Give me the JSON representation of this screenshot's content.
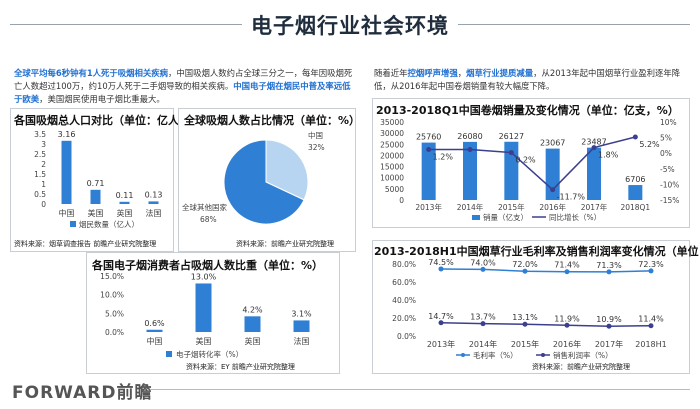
{
  "page": {
    "title": "电子烟行业社会环境",
    "footer_brand": "FORWARD前瞻"
  },
  "left_text": {
    "seg1": "全球平均每6秒钟有1人死于吸烟相关疾病",
    "seg2": "，中国吸烟人数约占全球三分之一，每年因吸烟死亡人数超过100万，约10万人死于二手烟导致的相关疾病。",
    "seg3": "中国电子烟在烟民中普及率远低于欧美",
    "seg4": "，美国烟民使用电子烟比重最大。"
  },
  "right_text": {
    "seg1": "随着近年",
    "seg2": "控烟呼声增强",
    "seg3": "，",
    "seg4": "烟草行业提质减量",
    "seg5": "，从2013年起中国烟草行业盈利逐年降低，从2016年起中国卷烟销量有较大幅度下降。"
  },
  "chart_data": [
    {
      "id": "smokers",
      "type": "bar",
      "title": "各国吸烟总人口对比（单位：亿人）",
      "categories": [
        "中国",
        "美国",
        "英国",
        "法国"
      ],
      "series": [
        {
          "name": "烟民数量（亿人）",
          "values": [
            3.16,
            0.71,
            0.11,
            0.13
          ]
        }
      ],
      "value_labels": [
        "3.16",
        "0.71",
        "0.11",
        "0.13"
      ],
      "ylim": [
        0,
        3.5
      ],
      "yticks": [
        "0",
        "0.5",
        "1",
        "1.5",
        "2",
        "2.5",
        "3",
        "3.5"
      ],
      "color": "#2f7fd4",
      "source": "资料来源：烟草调查报告 前瞻产业研究院整理"
    },
    {
      "id": "pie",
      "type": "pie",
      "title": "全球吸烟人数占比情况（单位：%）",
      "labels": [
        "中国",
        "全球其他国家"
      ],
      "values": [
        32,
        68
      ],
      "value_labels": [
        "32%",
        "68%"
      ],
      "colors": [
        "#b7d4f0",
        "#2f7fd4"
      ],
      "source": "资料来源：前瞻产业研究院整理"
    },
    {
      "id": "ecig",
      "type": "bar",
      "title": "各国电子烟消费者占吸烟人数比重（单位：%）",
      "categories": [
        "中国",
        "美国",
        "英国",
        "法国"
      ],
      "series": [
        {
          "name": "电子烟转化率（%）",
          "values": [
            0.6,
            13.0,
            4.2,
            3.1
          ]
        }
      ],
      "value_labels": [
        "0.6%",
        "13.0%",
        "4.2%",
        "3.1%"
      ],
      "ylim": [
        0,
        15
      ],
      "yticks": [
        "0.0%",
        "5.0%",
        "10.0%",
        "15.0%"
      ],
      "color": "#2f7fd4",
      "source": "资料来源：EY 前瞻产业研究院整理"
    },
    {
      "id": "sales",
      "type": "bar",
      "title": "2013-2018Q1中国卷烟销量及变化情况（单位：亿支，%）",
      "categories": [
        "2013年",
        "2014年",
        "2015年",
        "2016年",
        "2017年",
        "2018Q1"
      ],
      "series": [
        {
          "name": "销量（亿支）",
          "values": [
            25760,
            26080,
            26127,
            23067,
            23487,
            6706
          ]
        },
        {
          "name": "同比增长（%）",
          "values": [
            1.2,
            1.2,
            0.2,
            -11.7,
            1.8,
            5.2
          ]
        }
      ],
      "bar_labels": [
        "25760",
        "26080",
        "26127",
        "23067",
        "23487",
        "6706"
      ],
      "line_labels": [
        "1.2%",
        "",
        "0.2%",
        "-11.7%",
        "1.8%",
        "5.2%"
      ],
      "ylim": [
        0,
        35000
      ],
      "yticks": [
        "0",
        "5000",
        "10000",
        "15000",
        "20000",
        "25000",
        "30000",
        "35000"
      ],
      "y2lim": [
        -15,
        10
      ],
      "y2ticks": [
        "-15%",
        "-10%",
        "-5%",
        "0%",
        "5%",
        "10%"
      ],
      "colors": [
        "#2f7fd4",
        "#3b3f8f"
      ]
    },
    {
      "id": "margin",
      "type": "line",
      "title": "2013-2018H1中国烟草行业毛利率及销售利润率变化情况（单位：%）",
      "categories": [
        "2013年",
        "2014年",
        "2015年",
        "2016年",
        "2017年",
        "2018H1"
      ],
      "series": [
        {
          "name": "毛利率（%）",
          "values": [
            74.5,
            74.0,
            72.0,
            71.4,
            71.3,
            72.3
          ]
        },
        {
          "name": "销售利润率（%）",
          "values": [
            14.7,
            13.7,
            13.1,
            11.9,
            10.9,
            11.4
          ]
        }
      ],
      "labels1": [
        "74.5%",
        "74.0%",
        "72.0%",
        "71.4%",
        "71.3%",
        "72.3%"
      ],
      "labels2": [
        "14.7%",
        "13.7%",
        "13.1%",
        "11.9%",
        "10.9%",
        "11.4%"
      ],
      "ylim": [
        0,
        80
      ],
      "yticks": [
        "0.0%",
        "20.0%",
        "40.0%",
        "60.0%",
        "80.0%"
      ],
      "colors": [
        "#2f7fd4",
        "#3b3f8f"
      ],
      "source": "资料来源：前瞻产业研究院整理"
    }
  ]
}
